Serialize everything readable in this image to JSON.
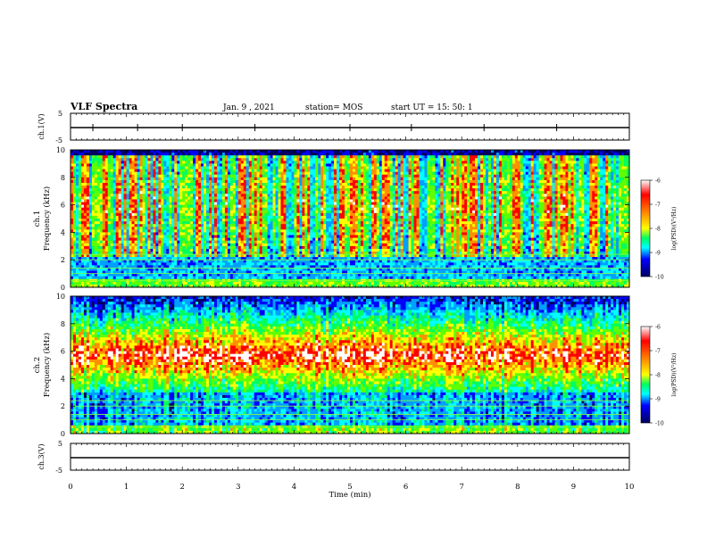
{
  "header": {
    "title": "VLF Spectra",
    "date": "Jan. 9 , 2021",
    "station": "station= MOS",
    "start": "start UT = 15: 50: 1"
  },
  "colors": {
    "scale": [
      "#000060",
      "#0000ff",
      "#00a0ff",
      "#00ffff",
      "#00ff60",
      "#60ff00",
      "#ffff00",
      "#ff9000",
      "#ff0000",
      "#ffffff"
    ],
    "trace": "#000000"
  },
  "chart_data": [
    {
      "type": "line",
      "panel": "ch1-waveform",
      "ylabel": "ch.1(V)",
      "yticks": [
        "5",
        "-5"
      ],
      "ylim": [
        -5,
        5
      ],
      "xlim": [
        0,
        10
      ],
      "trace_level": -1.5
    },
    {
      "type": "heatmap",
      "panel": "ch1-spectrogram",
      "ylabel": "ch.1\nFrequency (kHz)",
      "yticks": [
        "0",
        "2",
        "4",
        "6",
        "8",
        "10"
      ],
      "ylim": [
        0,
        10
      ],
      "xlim": [
        0,
        10
      ],
      "colorbar": {
        "label": "log(PSD)(V²/Hz)",
        "ticks": [
          "-6",
          "-7",
          "-8",
          "-9",
          "-10"
        ],
        "range": [
          -10,
          -6
        ]
      },
      "description_levels": {
        "band_center_khz": 5.5,
        "intensity_peak": -7
      }
    },
    {
      "type": "heatmap",
      "panel": "ch2-spectrogram",
      "ylabel": "ch.2\nFrequency (kHz)",
      "yticks": [
        "0",
        "2",
        "4",
        "6",
        "8",
        "10"
      ],
      "ylim": [
        0,
        10
      ],
      "xlim": [
        0,
        10
      ],
      "colorbar": {
        "label": "log(PSD)(V²/Hz)",
        "ticks": [
          "-6",
          "-7",
          "-8",
          "-9",
          "-10"
        ],
        "range": [
          -10,
          -6
        ]
      },
      "description_levels": {
        "band_center_khz": 5.7,
        "intensity_peak": -6.5
      }
    },
    {
      "type": "line",
      "panel": "ch3-waveform",
      "ylabel": "ch.3(V)",
      "yticks": [
        "5",
        "-5"
      ],
      "ylim": [
        -5,
        5
      ],
      "xlim": [
        0,
        10
      ],
      "trace_level": -2
    }
  ],
  "xaxis": {
    "label": "Time (min)",
    "ticks": [
      "0",
      "1",
      "2",
      "3",
      "4",
      "5",
      "6",
      "7",
      "8",
      "9",
      "10"
    ]
  }
}
